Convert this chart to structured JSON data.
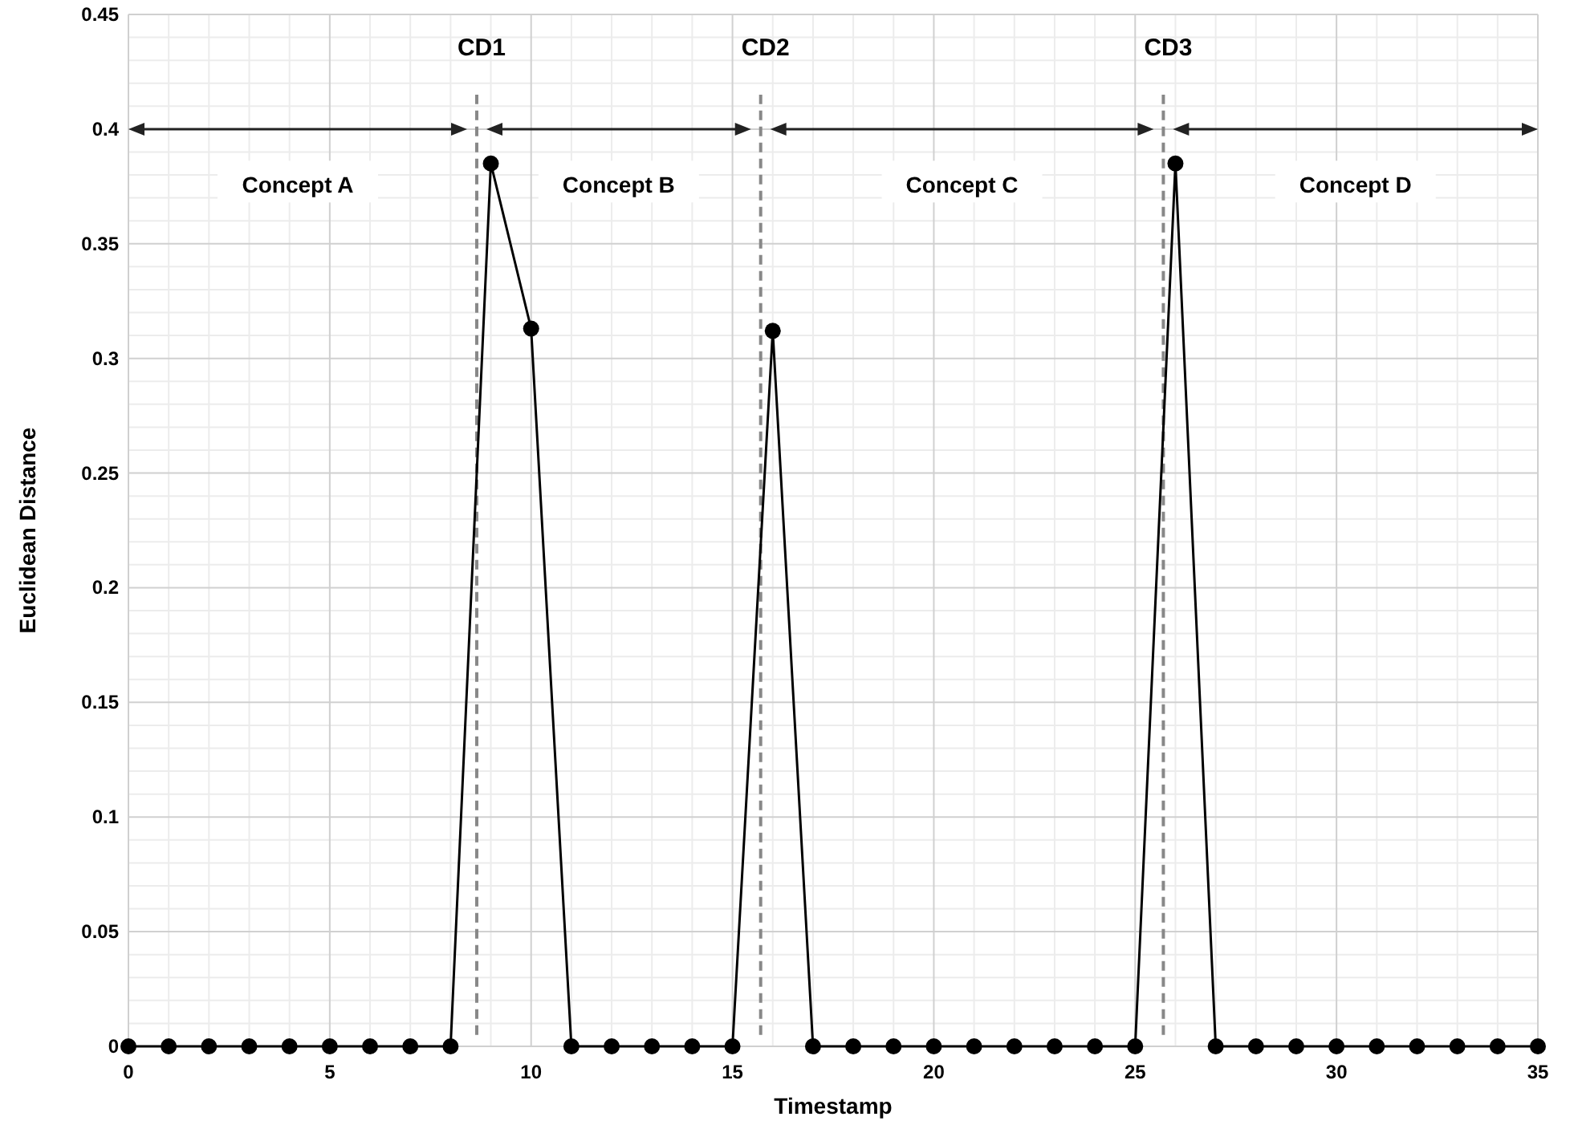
{
  "chart_data": {
    "type": "line",
    "xlabel": "Timestamp",
    "ylabel": "Euclidean Distance",
    "x": [
      0,
      1,
      2,
      3,
      4,
      5,
      6,
      7,
      8,
      9,
      10,
      11,
      12,
      13,
      14,
      15,
      16,
      17,
      18,
      19,
      20,
      21,
      22,
      23,
      24,
      25,
      26,
      27,
      28,
      29,
      30,
      31,
      32,
      33,
      34,
      35
    ],
    "series": [
      {
        "color": "#000000",
        "values": [
          0,
          0,
          0,
          0,
          0,
          0,
          0,
          0,
          0,
          0.385,
          0.313,
          0,
          0,
          0,
          0,
          0,
          0.312,
          0,
          0,
          0,
          0,
          0,
          0,
          0,
          0,
          0,
          0.385,
          0,
          0,
          0,
          0,
          0,
          0,
          0,
          0,
          0
        ]
      }
    ],
    "xlim": [
      0,
      35
    ],
    "xticks": [
      0,
      5,
      10,
      15,
      20,
      25,
      30,
      35
    ],
    "ylim": [
      0,
      0.45
    ],
    "yticks": [
      0,
      0.05,
      0.1,
      0.15,
      0.2,
      0.25,
      0.3,
      0.35,
      0.4,
      0.45
    ],
    "grid": true,
    "marker": "circle",
    "line_style": "solid",
    "ref_lines": [
      {
        "axis": "x",
        "value": 8.65,
        "label": "CD1",
        "color": "#888888",
        "line_style": "dashed"
      },
      {
        "axis": "x",
        "value": 15.7,
        "label": "CD2",
        "color": "#888888",
        "line_style": "dashed"
      },
      {
        "axis": "x",
        "value": 25.7,
        "label": "CD3",
        "color": "#888888",
        "line_style": "dashed"
      }
    ],
    "annotations": [
      "Concept A",
      "Concept B",
      "Concept C",
      "Concept D"
    ]
  }
}
